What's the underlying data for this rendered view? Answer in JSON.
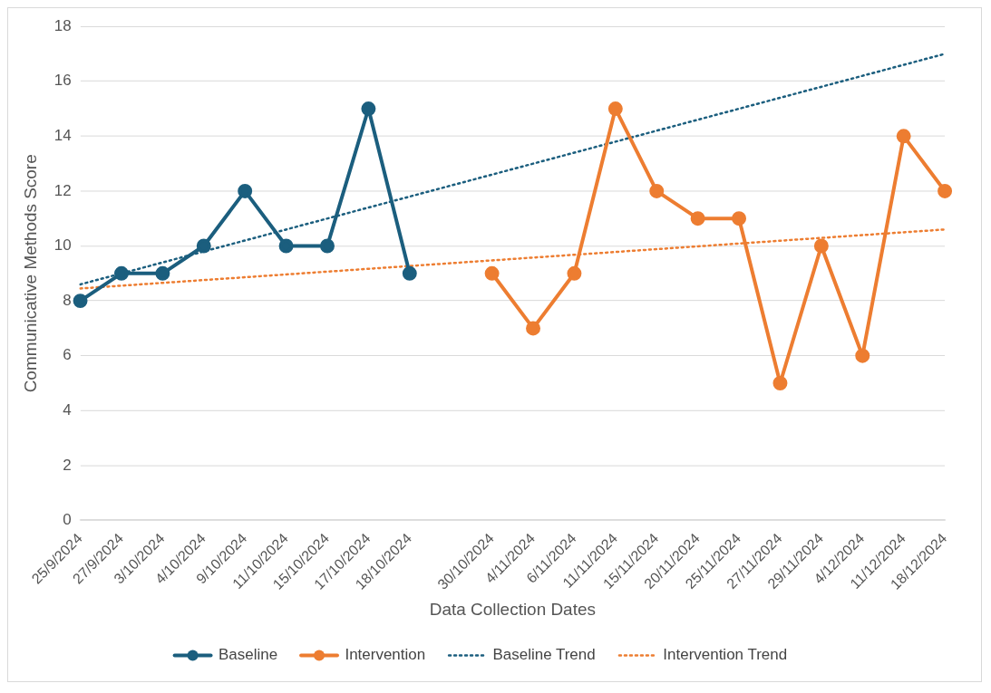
{
  "chart_data": {
    "type": "line",
    "xlabel": "Data Collection Dates",
    "ylabel": "Communicative Methods Score",
    "categories": [
      "25/9/2024",
      "27/9/2024",
      "3/10/2024",
      "4/10/2024",
      "9/10/2024",
      "11/10/2024",
      "15/10/2024",
      "17/10/2024",
      "18/10/2024",
      null,
      "30/10/2024",
      "4/11/2024",
      "6/11/2024",
      "11/11/2024",
      "15/11/2024",
      "20/11/2024",
      "25/11/2024",
      "27/11/2024",
      "29/11/2024",
      "4/12/2024",
      "11/12/2024",
      "18/12/2024"
    ],
    "series": [
      {
        "name": "Baseline",
        "color": "#1b5e7e",
        "marker": "circle",
        "line_style": "solid",
        "values": [
          8,
          9,
          9,
          10,
          12,
          10,
          10,
          15,
          9,
          null,
          null,
          null,
          null,
          null,
          null,
          null,
          null,
          null,
          null,
          null,
          null,
          null
        ]
      },
      {
        "name": "Intervention",
        "color": "#ed7d31",
        "marker": "circle",
        "line_style": "solid",
        "values": [
          null,
          null,
          null,
          null,
          null,
          null,
          null,
          null,
          null,
          null,
          9,
          7,
          9,
          15,
          12,
          11,
          11,
          5,
          10,
          6,
          14,
          12
        ]
      },
      {
        "name": "Baseline Trend",
        "type": "line",
        "color": "#1b5e7e",
        "marker": "none",
        "line_style": "dotted",
        "x": [
          "25/9/2024",
          "18/12/2024"
        ],
        "values": [
          8.6,
          17
        ]
      },
      {
        "name": "Intervention Trend",
        "type": "line",
        "color": "#ed7d31",
        "marker": "none",
        "line_style": "dotted",
        "x": [
          "25/9/2024",
          "18/12/2024"
        ],
        "values": [
          8.45,
          10.6
        ]
      }
    ],
    "ylim": [
      0,
      18
    ],
    "yticks": [
      0,
      2,
      4,
      6,
      8,
      10,
      12,
      14,
      16,
      18
    ],
    "grid": "y",
    "legend": "bottom"
  }
}
